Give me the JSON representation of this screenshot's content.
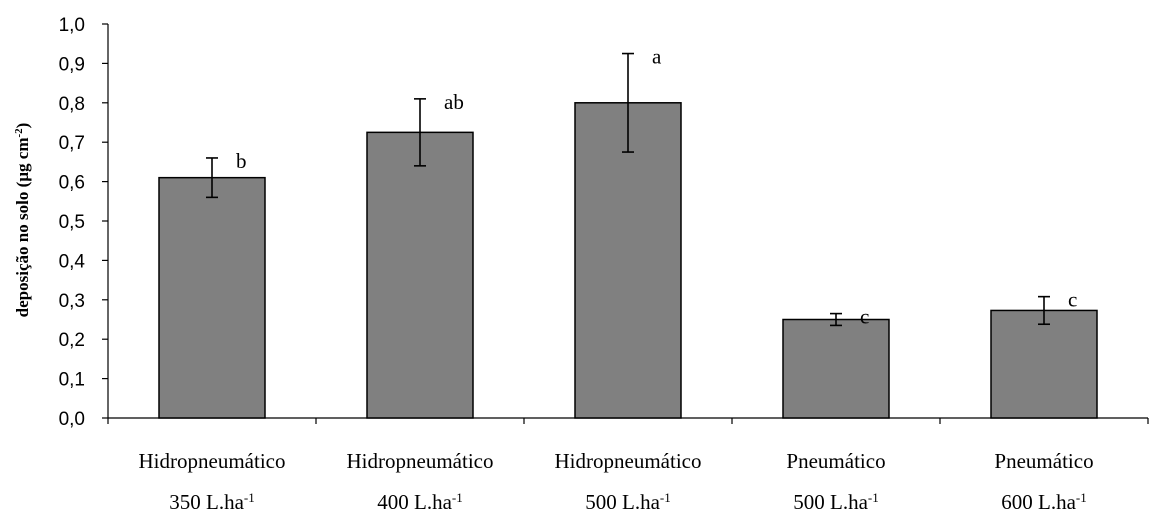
{
  "chart_data": {
    "type": "bar",
    "categories": [
      {
        "line1": "Hidropneumático",
        "line2_base": "350 L.ha",
        "line2_sup": "-1"
      },
      {
        "line1": "Hidropneumático",
        "line2_base": "400 L.ha",
        "line2_sup": "-1"
      },
      {
        "line1": "Hidropneumático",
        "line2_base": "500 L.ha",
        "line2_sup": "-1"
      },
      {
        "line1": "Pneumático",
        "line2_base": "500 L.ha",
        "line2_sup": "-1"
      },
      {
        "line1": "Pneumático",
        "line2_base": "600 L.ha",
        "line2_sup": "-1"
      }
    ],
    "values": [
      0.61,
      0.725,
      0.8,
      0.25,
      0.273
    ],
    "errors": [
      0.05,
      0.085,
      0.125,
      0.015,
      0.035
    ],
    "significance_labels": [
      "b",
      "ab",
      "a",
      "c",
      "c"
    ],
    "ylabel": {
      "base": "deposição no solo (µg cm",
      "sup": "-2",
      "close": ")"
    },
    "ylim": [
      0.0,
      1.0
    ],
    "yticks": [
      "0,0",
      "0,1",
      "0,2",
      "0,3",
      "0,4",
      "0,5",
      "0,6",
      "0,7",
      "0,8",
      "0,9",
      "1,0"
    ],
    "bar_color": "#808080",
    "grid": false,
    "legend": "none"
  }
}
